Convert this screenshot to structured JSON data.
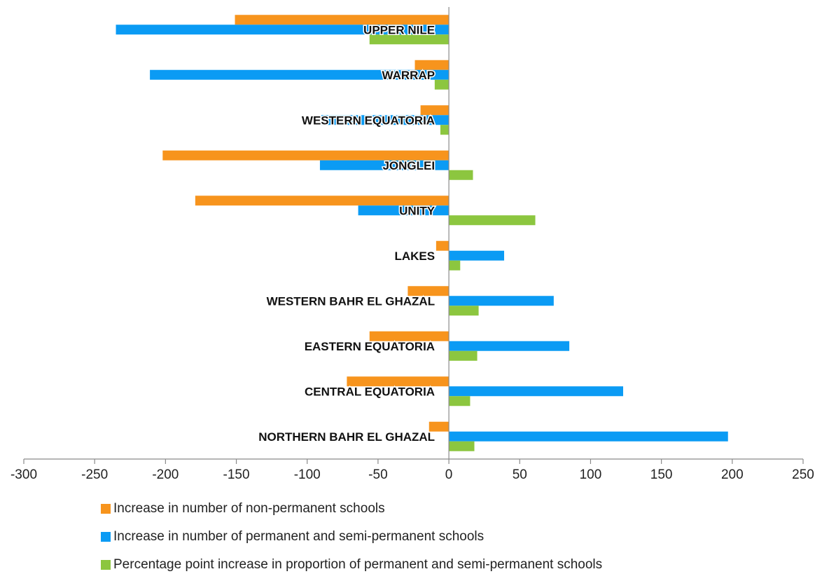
{
  "chart_data": {
    "type": "bar",
    "orientation": "horizontal",
    "title": "",
    "xlabel": "",
    "ylabel": "",
    "xlim": [
      -300,
      250
    ],
    "x_ticks": [
      "-300",
      "-250",
      "-200",
      "-150",
      "-100",
      "-50",
      "0",
      "50",
      "100",
      "150",
      "200",
      "250"
    ],
    "grid": false,
    "legend_position": "bottom",
    "categories": [
      "UPPER NILE",
      "WARRAP",
      "WESTERN EQUATORIA",
      "JONGLEI",
      "UNITY",
      "LAKES",
      "WESTERN BAHR EL GHAZAL",
      "EASTERN EQUATORIA",
      "CENTRAL EQUATORIA",
      "NORTHERN BAHR EL GHAZAL"
    ],
    "series": [
      {
        "name": "Increase in number of non-permanent schools",
        "color": "#F7941D",
        "values": [
          -151,
          -24,
          -20,
          -202,
          -179,
          -9,
          -29,
          -56,
          -72,
          -14
        ]
      },
      {
        "name": "Increase in number of permanent and semi-permanent schools",
        "color": "#0B9BF4",
        "values": [
          -235,
          -211,
          -90,
          -91,
          -64,
          39,
          74,
          85,
          123,
          197
        ]
      },
      {
        "name": "Percentage point increase in proportion of permanent and semi-permanent schools",
        "color": "#8CC63F",
        "values": [
          -56,
          -10,
          -6,
          17,
          61,
          8,
          21,
          20,
          15,
          18
        ]
      }
    ]
  }
}
